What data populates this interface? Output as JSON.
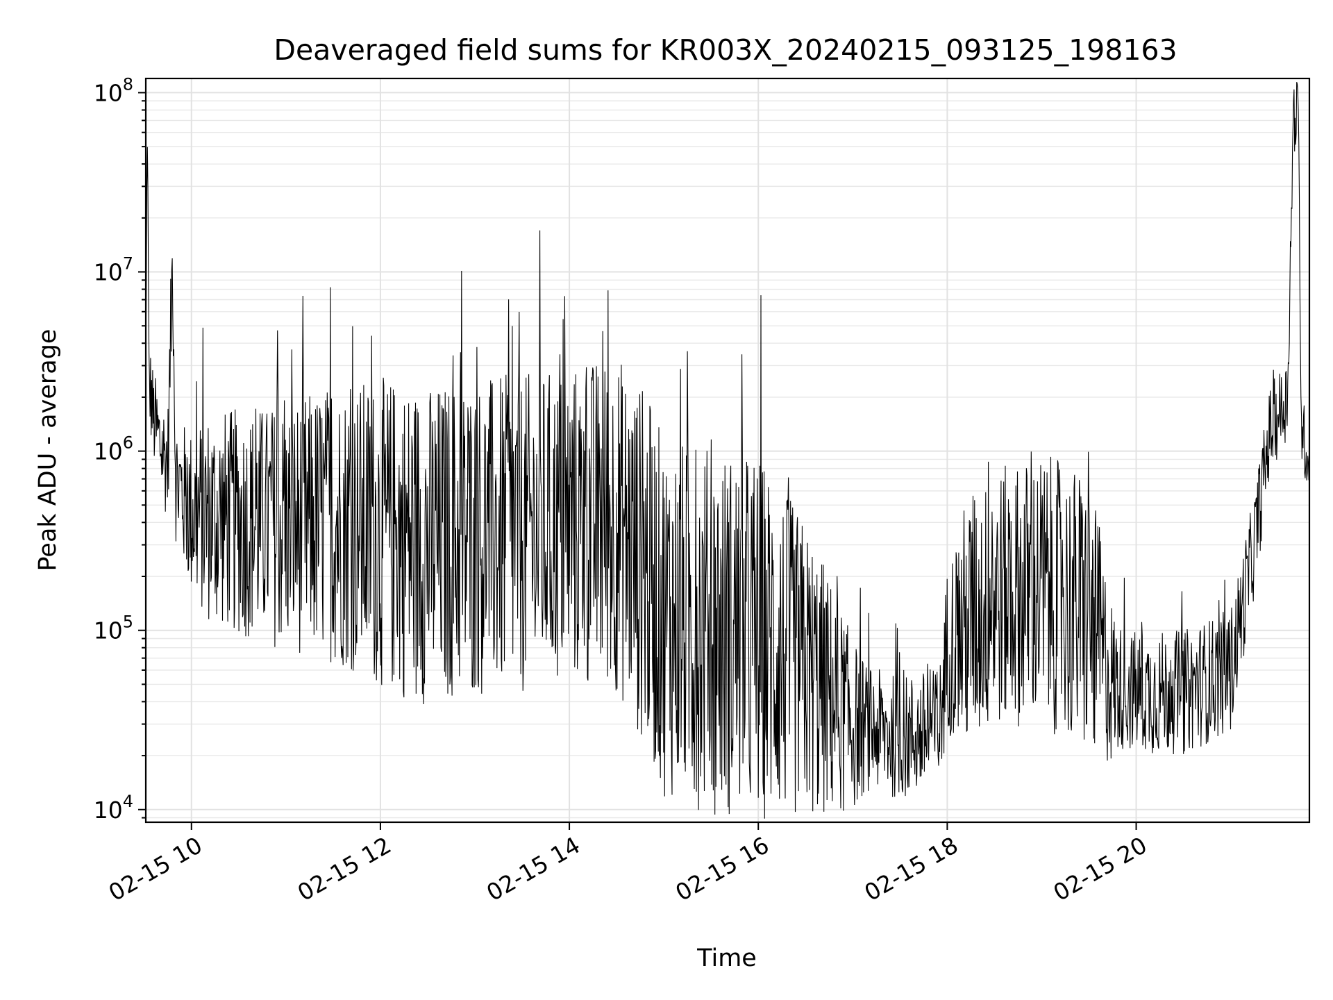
{
  "chart_data": {
    "type": "line",
    "title": "Deaveraged field sums for KR003X_20240215_093125_198163",
    "xlabel": "Time",
    "ylabel": "Peak ADU - average",
    "yscale": "log",
    "ylim": [
      8500,
      120000000
    ],
    "xlim": [
      "2024-02-15 09:31",
      "2024-02-15 21:50"
    ],
    "grid": true,
    "x_ticks": [
      "2024-02-15 10:00",
      "2024-02-15 12:00",
      "2024-02-15 14:00",
      "2024-02-15 16:00",
      "2024-02-15 18:00",
      "2024-02-15 20:00"
    ],
    "x_tick_labels": [
      "02-15 10",
      "02-15 12",
      "02-15 14",
      "02-15 16",
      "02-15 18",
      "02-15 20"
    ],
    "y_ticks": [
      {
        "value": 10000,
        "base": "10",
        "exp": "4"
      },
      {
        "value": 100000,
        "base": "10",
        "exp": "5"
      },
      {
        "value": 1000000,
        "base": "10",
        "exp": "6"
      },
      {
        "value": 10000000,
        "base": "10",
        "exp": "7"
      },
      {
        "value": 100000000,
        "base": "10",
        "exp": "8"
      }
    ],
    "series": [
      {
        "color": "#000000",
        "points": [
          [
            "2024-02-15 09:31",
            2500000
          ],
          [
            "2024-02-15 09:32",
            75000000
          ],
          [
            "2024-02-15 09:33",
            2500000
          ],
          [
            "2024-02-15 09:36",
            1500000
          ],
          [
            "2024-02-15 09:40",
            1100000
          ],
          [
            "2024-02-15 09:45",
            850000
          ],
          [
            "2024-02-15 09:48",
            12800000
          ],
          [
            "2024-02-15 09:50",
            700000
          ],
          [
            "2024-02-15 10:00",
            450000
          ],
          [
            "2024-02-15 10:30",
            400000
          ],
          [
            "2024-02-15 11:00",
            380000
          ],
          [
            "2024-02-15 11:30",
            400000
          ],
          [
            "2024-02-15 12:00",
            350000
          ],
          [
            "2024-02-15 12:30",
            300000
          ],
          [
            "2024-02-15 13:00",
            330000
          ],
          [
            "2024-02-15 13:30",
            340000
          ],
          [
            "2024-02-15 14:00",
            380000
          ],
          [
            "2024-02-15 14:30",
            400000
          ],
          [
            "2024-02-15 14:50",
            200000
          ],
          [
            "2024-02-15 15:00",
            120000
          ],
          [
            "2024-02-15 15:30",
            100000
          ],
          [
            "2024-02-15 16:00",
            90000
          ],
          [
            "2024-02-15 16:30",
            60000
          ],
          [
            "2024-02-15 17:00",
            30000
          ],
          [
            "2024-02-15 17:30",
            25000
          ],
          [
            "2024-02-15 17:55",
            28000
          ],
          [
            "2024-02-15 18:00",
            80000
          ],
          [
            "2024-02-15 18:30",
            150000
          ],
          [
            "2024-02-15 19:00",
            170000
          ],
          [
            "2024-02-15 19:30",
            120000
          ],
          [
            "2024-02-15 19:45",
            50000
          ],
          [
            "2024-02-15 20:00",
            45000
          ],
          [
            "2024-02-15 20:30",
            45000
          ],
          [
            "2024-02-15 21:00",
            60000
          ],
          [
            "2024-02-15 21:15",
            300000
          ],
          [
            "2024-02-15 21:25",
            1300000
          ],
          [
            "2024-02-15 21:36",
            2000000
          ],
          [
            "2024-02-15 21:40",
            76000000
          ],
          [
            "2024-02-15 21:43",
            72000000
          ],
          [
            "2024-02-15 21:45",
            1300000
          ],
          [
            "2024-02-15 21:50",
            900000
          ]
        ],
        "noise_band_log10": [
          [
            "2024-02-15 09:31",
            0.25
          ],
          [
            "2024-02-15 09:50",
            0.35
          ],
          [
            "2024-02-15 10:10",
            0.6
          ],
          [
            "2024-02-15 11:00",
            0.7
          ],
          [
            "2024-02-15 12:10",
            0.9
          ],
          [
            "2024-02-15 14:00",
            0.9
          ],
          [
            "2024-02-15 14:50",
            1.0
          ],
          [
            "2024-02-15 16:00",
            1.05
          ],
          [
            "2024-02-15 16:40",
            0.75
          ],
          [
            "2024-02-15 17:10",
            0.35
          ],
          [
            "2024-02-15 17:55",
            0.35
          ],
          [
            "2024-02-15 18:10",
            0.7
          ],
          [
            "2024-02-15 19:30",
            0.8
          ],
          [
            "2024-02-15 19:50",
            0.35
          ],
          [
            "2024-02-15 21:00",
            0.35
          ],
          [
            "2024-02-15 21:25",
            0.25
          ],
          [
            "2024-02-15 21:50",
            0.2
          ]
        ]
      }
    ]
  }
}
